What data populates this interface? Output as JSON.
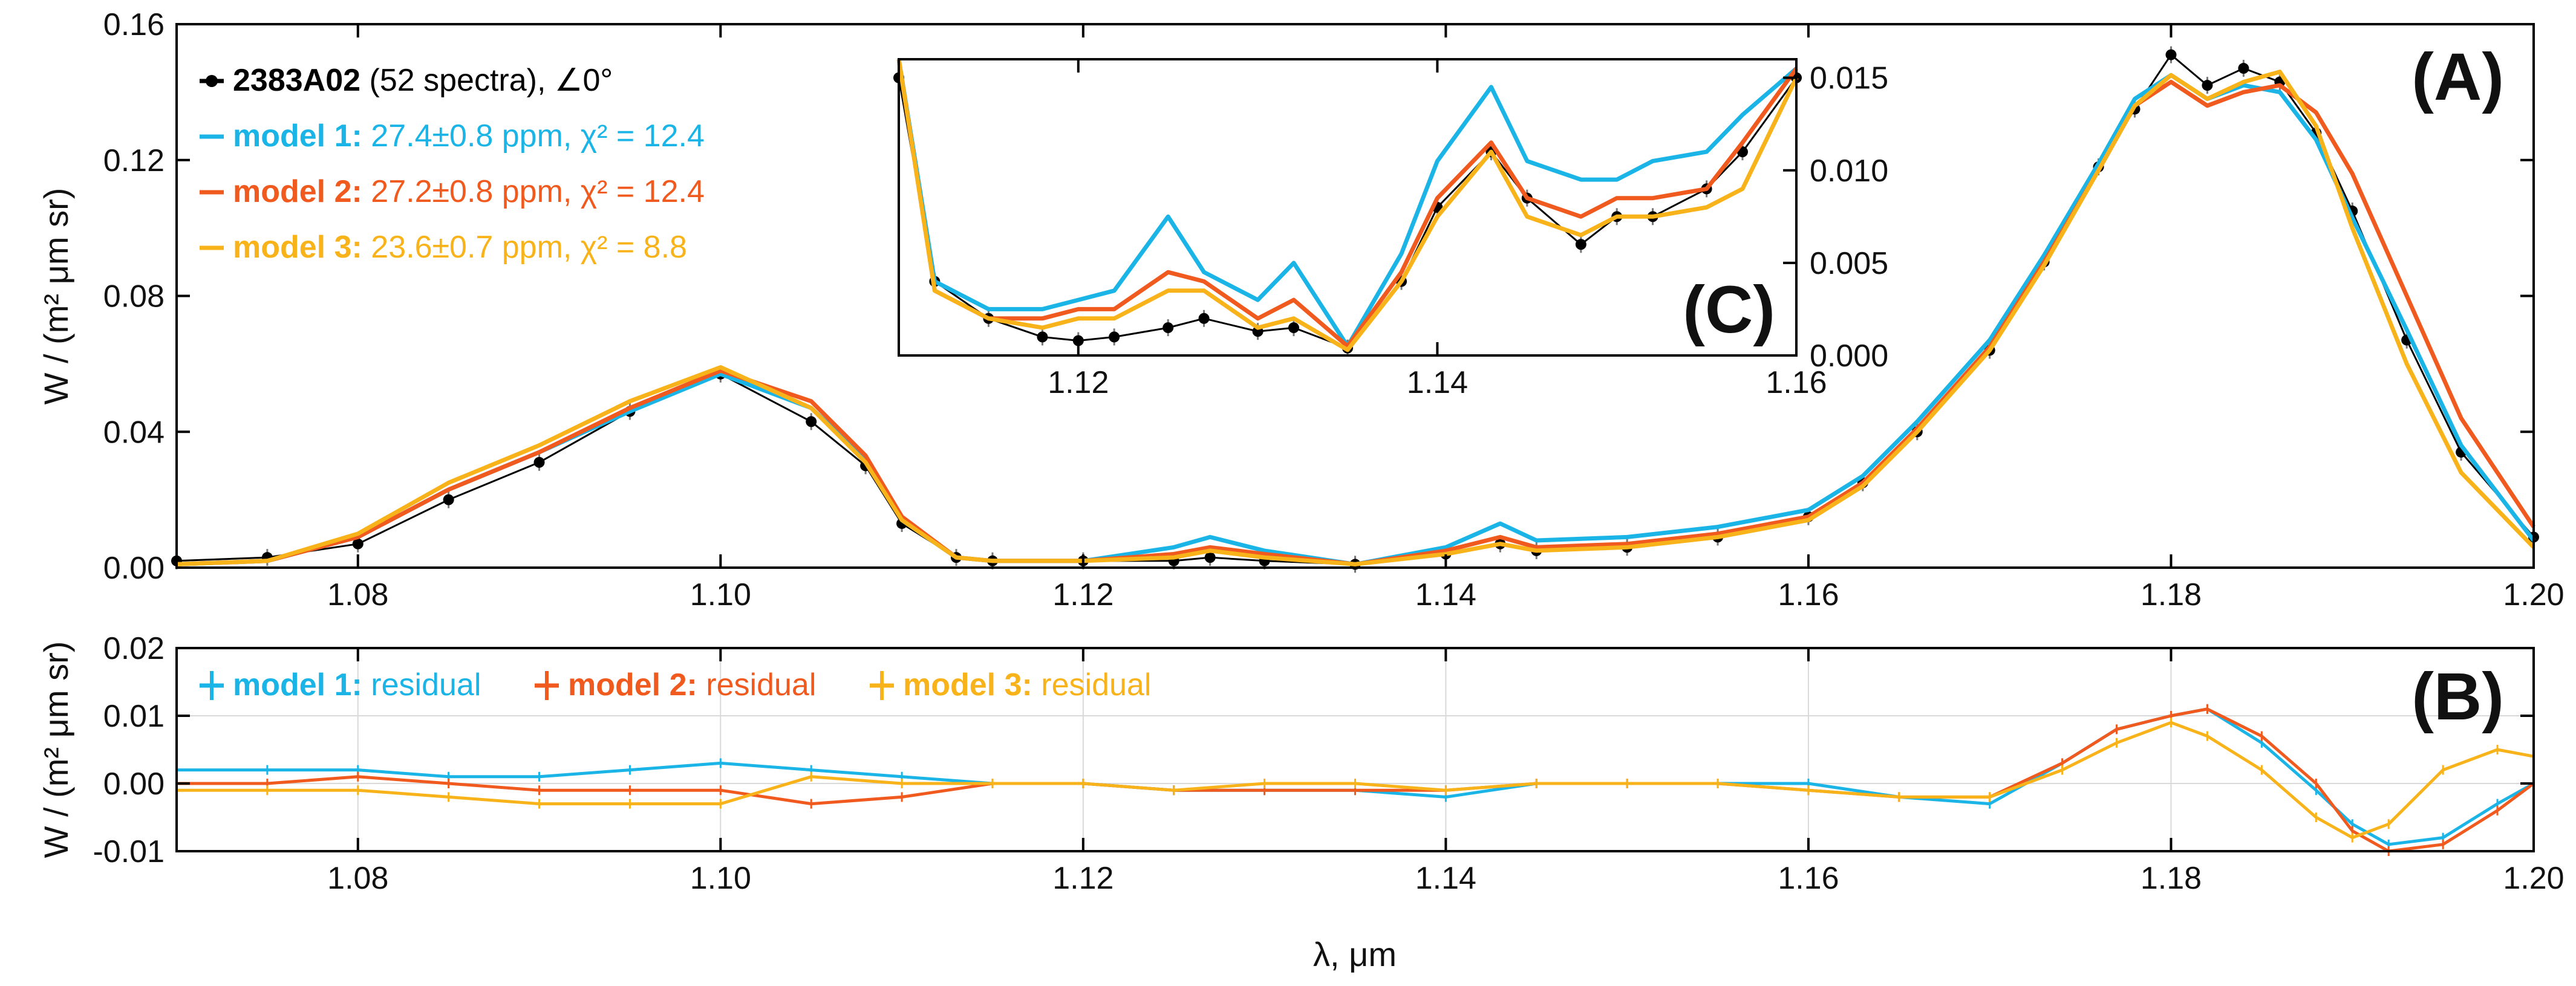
{
  "colors": {
    "data": "#000000",
    "model1": "#1ab5e6",
    "model2": "#f05a1e",
    "model3": "#f8b31a",
    "grid": "#d9d9d9"
  },
  "panelA": {
    "letter": "(A)",
    "ylabel": "W / (m² μm sr)",
    "legend": [
      {
        "bold": "2383A02",
        "rest": " (52 spectra), ∠0°",
        "color": "#000000"
      },
      {
        "bold": "model 1:",
        "rest": " 27.4±0.8 ppm, χ² = 12.4",
        "color": "#1ab5e6"
      },
      {
        "bold": "model 2:",
        "rest": " 27.2±0.8 ppm, χ² = 12.4",
        "color": "#f05a1e"
      },
      {
        "bold": "model 3:",
        "rest": " 23.6±0.7 ppm, χ² = 8.8",
        "color": "#f8b31a"
      }
    ]
  },
  "panelB": {
    "letter": "(B)",
    "ylabel": "W / (m² μm sr)",
    "xlabel": "λ, μm",
    "legend": [
      {
        "bold": "model 1:",
        "rest": " residual",
        "color": "#1ab5e6"
      },
      {
        "bold": "model 2:",
        "rest": " residual",
        "color": "#f05a1e"
      },
      {
        "bold": "model 3:",
        "rest": " residual",
        "color": "#f8b31a"
      }
    ]
  },
  "panelC": {
    "letter": "(C)"
  },
  "chart_data": [
    {
      "id": "A",
      "type": "line",
      "ylabel": "W / (m² μm sr)",
      "xlim": [
        1.07,
        1.2
      ],
      "ylim": [
        0.0,
        0.16
      ],
      "xticks": [
        "1.08",
        "1.10",
        "1.12",
        "1.14",
        "1.16",
        "1.18",
        "1.20"
      ],
      "yticks": [
        "0.00",
        "0.04",
        "0.08",
        "0.12",
        "0.16"
      ],
      "x": [
        1.07,
        1.075,
        1.08,
        1.085,
        1.09,
        1.095,
        1.1,
        1.105,
        1.108,
        1.11,
        1.113,
        1.115,
        1.12,
        1.125,
        1.127,
        1.13,
        1.135,
        1.14,
        1.143,
        1.145,
        1.15,
        1.155,
        1.16,
        1.163,
        1.166,
        1.17,
        1.173,
        1.176,
        1.178,
        1.18,
        1.182,
        1.184,
        1.186,
        1.188,
        1.19,
        1.193,
        1.196,
        1.2
      ],
      "series": [
        {
          "name": "2383A02",
          "values": [
            0.002,
            0.003,
            0.007,
            0.02,
            0.031,
            0.046,
            0.057,
            0.043,
            0.03,
            0.013,
            0.003,
            0.002,
            0.002,
            0.002,
            0.003,
            0.002,
            0.001,
            0.004,
            0.007,
            0.005,
            0.006,
            0.009,
            0.015,
            0.025,
            0.04,
            0.064,
            0.09,
            0.118,
            0.135,
            0.151,
            0.142,
            0.147,
            0.143,
            0.128,
            0.105,
            0.067,
            0.034,
            0.009
          ]
        },
        {
          "name": "model 1",
          "values": [
            0.001,
            0.002,
            0.009,
            0.023,
            0.034,
            0.046,
            0.057,
            0.047,
            0.032,
            0.014,
            0.003,
            0.002,
            0.002,
            0.006,
            0.009,
            0.005,
            0.001,
            0.006,
            0.013,
            0.008,
            0.009,
            0.012,
            0.017,
            0.027,
            0.043,
            0.067,
            0.092,
            0.119,
            0.138,
            0.145,
            0.138,
            0.142,
            0.14,
            0.126,
            0.103,
            0.07,
            0.036,
            0.008
          ]
        },
        {
          "name": "model 2",
          "values": [
            0.001,
            0.002,
            0.009,
            0.023,
            0.034,
            0.047,
            0.058,
            0.049,
            0.033,
            0.015,
            0.003,
            0.002,
            0.002,
            0.004,
            0.006,
            0.004,
            0.001,
            0.005,
            0.009,
            0.006,
            0.007,
            0.01,
            0.015,
            0.025,
            0.041,
            0.065,
            0.09,
            0.117,
            0.136,
            0.143,
            0.136,
            0.14,
            0.142,
            0.134,
            0.116,
            0.08,
            0.044,
            0.012
          ]
        },
        {
          "name": "model 3",
          "values": [
            0.001,
            0.002,
            0.01,
            0.025,
            0.036,
            0.049,
            0.059,
            0.047,
            0.031,
            0.014,
            0.003,
            0.002,
            0.002,
            0.003,
            0.005,
            0.003,
            0.001,
            0.004,
            0.007,
            0.005,
            0.006,
            0.009,
            0.014,
            0.024,
            0.04,
            0.064,
            0.089,
            0.117,
            0.136,
            0.145,
            0.138,
            0.143,
            0.146,
            0.13,
            0.1,
            0.06,
            0.028,
            0.006
          ]
        }
      ]
    },
    {
      "id": "B",
      "type": "line",
      "xlabel": "λ, μm",
      "ylabel": "W / (m² μm sr)",
      "xlim": [
        1.07,
        1.2
      ],
      "ylim": [
        -0.01,
        0.02
      ],
      "xticks": [
        "1.08",
        "1.10",
        "1.12",
        "1.14",
        "1.16",
        "1.18",
        "1.20"
      ],
      "yticks": [
        "-0.01",
        "0.00",
        "0.01",
        "0.02"
      ],
      "x": [
        1.07,
        1.075,
        1.08,
        1.085,
        1.09,
        1.095,
        1.1,
        1.105,
        1.11,
        1.115,
        1.12,
        1.125,
        1.13,
        1.135,
        1.14,
        1.145,
        1.15,
        1.155,
        1.16,
        1.165,
        1.17,
        1.174,
        1.177,
        1.18,
        1.182,
        1.185,
        1.188,
        1.19,
        1.192,
        1.195,
        1.198,
        1.2
      ],
      "series": [
        {
          "name": "model 1",
          "values": [
            0.002,
            0.002,
            0.002,
            0.001,
            0.001,
            0.002,
            0.003,
            0.002,
            0.001,
            0.0,
            0.0,
            -0.001,
            -0.001,
            -0.001,
            -0.002,
            0.0,
            0.0,
            0.0,
            0.0,
            -0.002,
            -0.003,
            0.003,
            0.008,
            0.01,
            0.011,
            0.006,
            -0.001,
            -0.006,
            -0.009,
            -0.008,
            -0.003,
            0.0
          ]
        },
        {
          "name": "model 2",
          "values": [
            0.0,
            0.0,
            0.001,
            0.0,
            -0.001,
            -0.001,
            -0.001,
            -0.003,
            -0.002,
            0.0,
            0.0,
            -0.001,
            -0.001,
            -0.001,
            -0.001,
            0.0,
            0.0,
            0.0,
            -0.001,
            -0.002,
            -0.002,
            0.003,
            0.008,
            0.01,
            0.011,
            0.007,
            0.0,
            -0.007,
            -0.01,
            -0.009,
            -0.004,
            0.0
          ]
        },
        {
          "name": "model 3",
          "values": [
            -0.001,
            -0.001,
            -0.001,
            -0.002,
            -0.003,
            -0.003,
            -0.003,
            0.001,
            0.0,
            0.0,
            0.0,
            -0.001,
            0.0,
            0.0,
            -0.001,
            0.0,
            0.0,
            0.0,
            -0.001,
            -0.002,
            -0.002,
            0.002,
            0.006,
            0.009,
            0.007,
            0.002,
            -0.005,
            -0.008,
            -0.006,
            0.002,
            0.005,
            0.004
          ]
        }
      ]
    },
    {
      "id": "C",
      "type": "line",
      "note": "inset zoom of panel A",
      "xlim": [
        1.11,
        1.16
      ],
      "ylim": [
        0.0,
        0.016
      ],
      "xticks": [
        "1.12",
        "1.14",
        "1.16"
      ],
      "yticks": [
        "0.000",
        "0.005",
        "0.010",
        "0.015"
      ],
      "x": [
        1.11,
        1.112,
        1.115,
        1.118,
        1.12,
        1.122,
        1.125,
        1.127,
        1.13,
        1.132,
        1.135,
        1.138,
        1.14,
        1.143,
        1.145,
        1.148,
        1.15,
        1.152,
        1.155,
        1.157,
        1.16
      ],
      "series": [
        {
          "name": "2383A02",
          "values": [
            0.015,
            0.004,
            0.002,
            0.001,
            0.0008,
            0.001,
            0.0015,
            0.002,
            0.0013,
            0.0015,
            0.0004,
            0.004,
            0.008,
            0.011,
            0.0085,
            0.006,
            0.0075,
            0.0075,
            0.009,
            0.011,
            0.015
          ]
        },
        {
          "name": "model 1",
          "values": [
            0.016,
            0.004,
            0.0025,
            0.0025,
            0.003,
            0.0035,
            0.0075,
            0.0045,
            0.003,
            0.005,
            0.0005,
            0.0055,
            0.0105,
            0.0145,
            0.0105,
            0.0095,
            0.0095,
            0.0105,
            0.011,
            0.013,
            0.0155
          ]
        },
        {
          "name": "model 2",
          "values": [
            0.016,
            0.0035,
            0.002,
            0.002,
            0.0025,
            0.0025,
            0.0045,
            0.004,
            0.002,
            0.003,
            0.0005,
            0.0045,
            0.0085,
            0.0115,
            0.0085,
            0.0075,
            0.0085,
            0.0085,
            0.009,
            0.0115,
            0.0155
          ]
        },
        {
          "name": "model 3",
          "values": [
            0.016,
            0.0035,
            0.002,
            0.0015,
            0.002,
            0.002,
            0.0035,
            0.0035,
            0.0015,
            0.002,
            0.0003,
            0.004,
            0.0075,
            0.011,
            0.0075,
            0.0065,
            0.0075,
            0.0075,
            0.008,
            0.009,
            0.015
          ]
        }
      ]
    }
  ]
}
